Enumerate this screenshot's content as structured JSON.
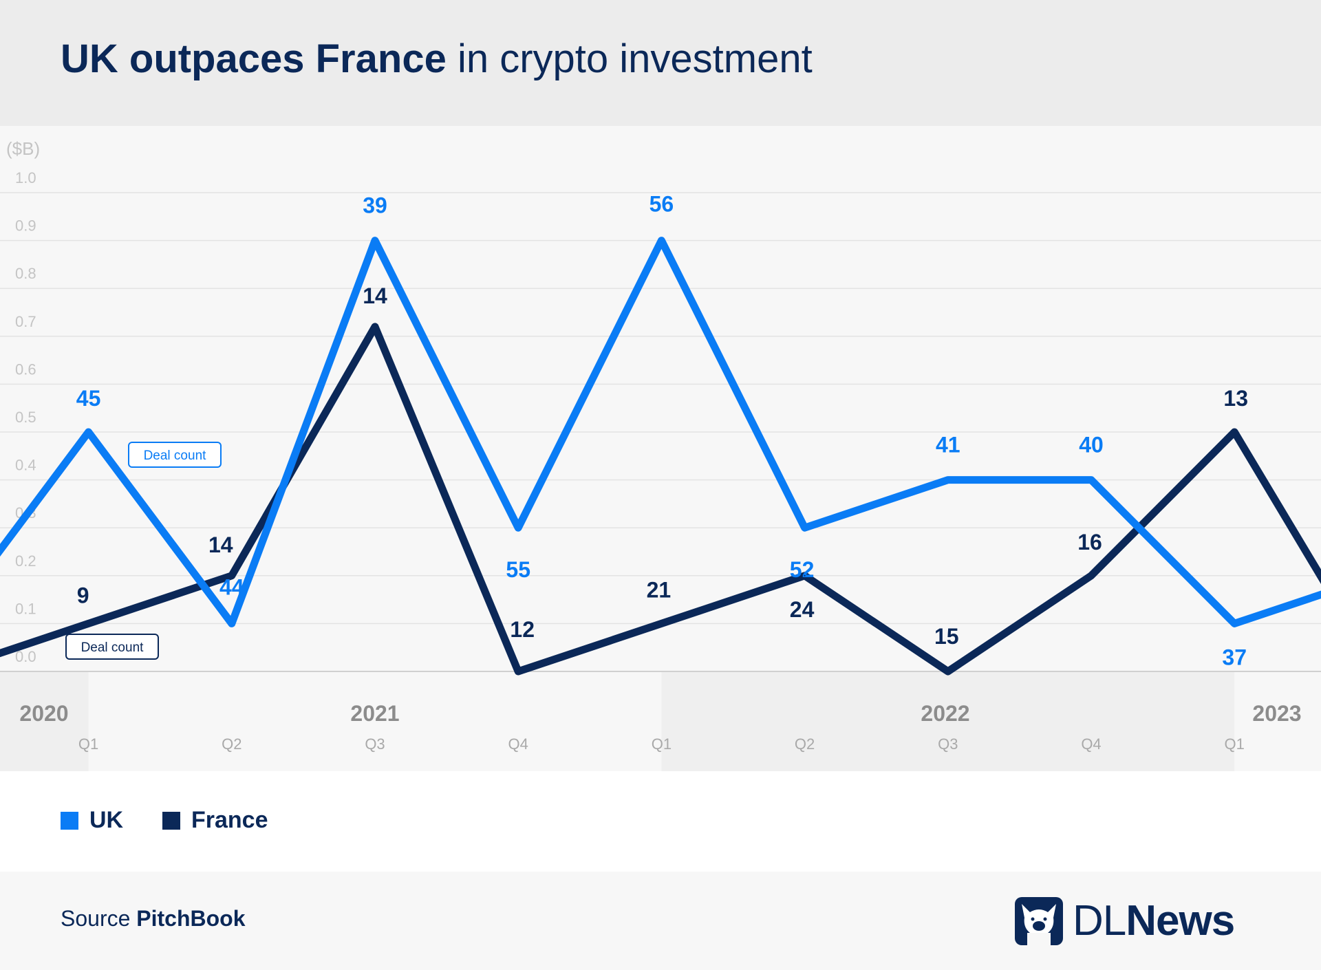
{
  "header": {
    "title_bold": "UK outpaces France",
    "title_rest": " in crypto investment"
  },
  "chart_data": {
    "type": "line",
    "title": "UK outpaces France in crypto investment",
    "ylabel": "($B)",
    "ylim": [
      0,
      1.0
    ],
    "yticks": [
      "0.0",
      "0.1",
      "0.2",
      "0.3",
      "0.4",
      "0.5",
      "0.6",
      "0.7",
      "0.8",
      "0.9",
      "1.0"
    ],
    "grid": true,
    "x": [
      "Q1",
      "Q2",
      "Q3",
      "Q4",
      "Q1",
      "Q2",
      "Q3",
      "Q4",
      "Q1"
    ],
    "years": [
      "2020",
      "2021",
      "2022",
      "2023"
    ],
    "series": [
      {
        "name": "UK",
        "color": "#0a7cf5",
        "values": [
          0.5,
          0.1,
          0.9,
          0.3,
          0.9,
          0.3,
          0.4,
          0.4,
          0.1
        ],
        "deal_counts": [
          "45",
          "44",
          "39",
          "55",
          "56",
          "52",
          "41",
          "40",
          "37"
        ],
        "offscreen_before": 0.1,
        "offscreen_after": 0.2
      },
      {
        "name": "France",
        "color": "#0b2858",
        "values": [
          0.1,
          0.2,
          0.72,
          0.0,
          0.1,
          0.2,
          0.0,
          0.2,
          0.5
        ],
        "deal_counts": [
          "9",
          "14",
          "14",
          "12",
          "21",
          "24",
          "15",
          "16",
          "13"
        ],
        "offscreen_before": 0.0,
        "offscreen_after": 0.0
      }
    ],
    "annotations": [
      "Deal count",
      "Deal count"
    ],
    "legend": "bottom-left"
  },
  "footer": {
    "source_label": "Source ",
    "source_name": "PitchBook",
    "logo": "DLNews"
  }
}
